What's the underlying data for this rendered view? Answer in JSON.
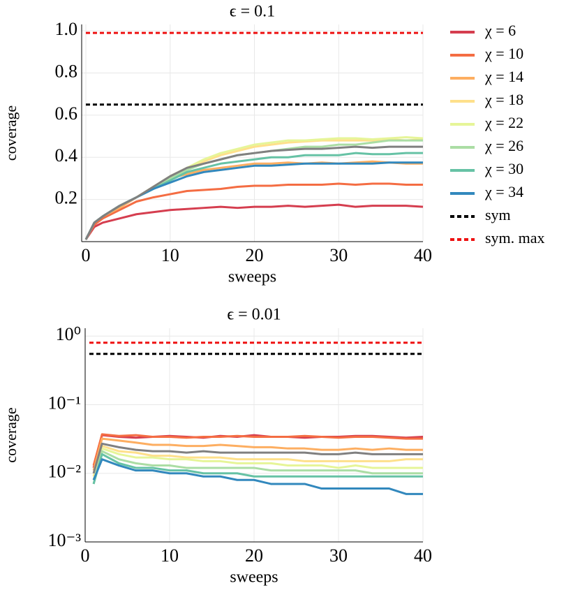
{
  "chart_data": [
    {
      "type": "line",
      "title": "ϵ = 0.1",
      "xlabel": "sweeps",
      "ylabel": "coverage",
      "xlim": [
        -0.5,
        40
      ],
      "ylim": [
        0,
        1.03
      ],
      "xticks": [
        0,
        10,
        20,
        30,
        40
      ],
      "yticks": [
        0.2,
        0.4,
        0.6,
        0.8,
        {
          "value": 1.0,
          "label": "1.0"
        }
      ],
      "grid": true,
      "log_y": false,
      "legend": "outside right",
      "x": [
        0,
        1,
        2,
        4,
        6,
        8,
        10,
        12,
        14,
        16,
        18,
        20,
        22,
        24,
        26,
        28,
        30,
        32,
        34,
        36,
        38,
        40
      ],
      "series": [
        {
          "name": "χ = 6",
          "color": "#d53e4f",
          "values": [
            0.01,
            0.07,
            0.09,
            0.11,
            0.13,
            0.14,
            0.15,
            0.155,
            0.16,
            0.165,
            0.16,
            0.165,
            0.165,
            0.17,
            0.165,
            0.17,
            0.175,
            0.165,
            0.17,
            0.17,
            0.17,
            0.165
          ]
        },
        {
          "name": "χ = 10",
          "color": "#f46d43",
          "values": [
            0.01,
            0.08,
            0.11,
            0.15,
            0.19,
            0.21,
            0.225,
            0.24,
            0.245,
            0.25,
            0.26,
            0.265,
            0.265,
            0.27,
            0.27,
            0.27,
            0.275,
            0.27,
            0.275,
            0.275,
            0.27,
            0.27
          ]
        },
        {
          "name": "χ = 14",
          "color": "#fdae61",
          "values": [
            0.01,
            0.09,
            0.12,
            0.16,
            0.21,
            0.26,
            0.3,
            0.32,
            0.34,
            0.35,
            0.36,
            0.37,
            0.37,
            0.375,
            0.37,
            0.375,
            0.37,
            0.375,
            0.38,
            0.375,
            0.37,
            0.37
          ]
        },
        {
          "name": "χ = 18",
          "color": "#fee08b",
          "values": [
            0.01,
            0.09,
            0.12,
            0.17,
            0.21,
            0.26,
            0.31,
            0.35,
            0.38,
            0.41,
            0.43,
            0.45,
            0.46,
            0.47,
            0.475,
            0.48,
            0.48,
            0.48,
            0.48,
            0.485,
            0.48,
            0.485
          ]
        },
        {
          "name": "χ = 22",
          "color": "#e6f598",
          "values": [
            0.01,
            0.09,
            0.12,
            0.17,
            0.21,
            0.26,
            0.31,
            0.35,
            0.39,
            0.42,
            0.44,
            0.46,
            0.47,
            0.48,
            0.48,
            0.485,
            0.49,
            0.49,
            0.485,
            0.49,
            0.495,
            0.49
          ]
        },
        {
          "name": "χ = 26",
          "color": "#abdda4",
          "values": [
            0.01,
            0.09,
            0.12,
            0.17,
            0.21,
            0.25,
            0.3,
            0.34,
            0.37,
            0.39,
            0.41,
            0.42,
            0.43,
            0.44,
            0.45,
            0.45,
            0.46,
            0.46,
            0.47,
            0.48,
            0.48,
            0.48
          ]
        },
        {
          "name": "χ = 30",
          "color": "#66c2a5",
          "values": [
            0.01,
            0.09,
            0.12,
            0.17,
            0.21,
            0.25,
            0.29,
            0.33,
            0.35,
            0.37,
            0.38,
            0.39,
            0.4,
            0.4,
            0.41,
            0.41,
            0.41,
            0.42,
            0.415,
            0.415,
            0.42,
            0.42
          ]
        },
        {
          "name": "χ = 34",
          "color": "#3288bd",
          "values": [
            0.01,
            0.09,
            0.12,
            0.17,
            0.21,
            0.25,
            0.28,
            0.31,
            0.33,
            0.34,
            0.35,
            0.36,
            0.36,
            0.365,
            0.37,
            0.37,
            0.37,
            0.37,
            0.37,
            0.375,
            0.375,
            0.375
          ]
        },
        {
          "color": "#808080",
          "values": [
            0.01,
            0.09,
            0.12,
            0.17,
            0.21,
            0.26,
            0.31,
            0.35,
            0.37,
            0.39,
            0.41,
            0.42,
            0.43,
            0.435,
            0.44,
            0.44,
            0.445,
            0.45,
            0.445,
            0.45,
            0.45,
            0.45
          ]
        }
      ],
      "hlines": [
        {
          "name": "sym",
          "color": "#000000",
          "value": 0.65
        },
        {
          "name": "sym. max",
          "color": "#ee1111",
          "value": 0.99
        }
      ]
    },
    {
      "type": "line",
      "title": "ϵ = 0.01",
      "xlabel": "sweeps",
      "ylabel": "coverage",
      "xlim": [
        0,
        40
      ],
      "ylim": [
        0.001,
        1.3
      ],
      "xticks": [
        0,
        10,
        20,
        30,
        40
      ],
      "yticks": [
        {
          "value": 0.001,
          "label": "10⁻³"
        },
        {
          "value": 0.01,
          "label": "10⁻²"
        },
        {
          "value": 0.1,
          "label": "10⁻¹"
        },
        {
          "value": 1,
          "label": "10⁰"
        }
      ],
      "grid": true,
      "log_y": true,
      "x": [
        1,
        2,
        4,
        6,
        8,
        10,
        12,
        14,
        16,
        18,
        20,
        22,
        24,
        26,
        28,
        30,
        32,
        34,
        36,
        38,
        40
      ],
      "series": [
        {
          "color": "#d53e4f",
          "values": [
            0.012,
            0.036,
            0.034,
            0.033,
            0.034,
            0.035,
            0.034,
            0.033,
            0.035,
            0.034,
            0.036,
            0.034,
            0.034,
            0.033,
            0.034,
            0.034,
            0.035,
            0.035,
            0.034,
            0.033,
            0.034
          ]
        },
        {
          "color": "#f46d43",
          "values": [
            0.013,
            0.037,
            0.035,
            0.036,
            0.034,
            0.034,
            0.033,
            0.034,
            0.034,
            0.035,
            0.034,
            0.034,
            0.034,
            0.035,
            0.034,
            0.033,
            0.034,
            0.034,
            0.033,
            0.032,
            0.032
          ]
        },
        {
          "color": "#fdae61",
          "values": [
            0.011,
            0.032,
            0.03,
            0.028,
            0.026,
            0.026,
            0.025,
            0.025,
            0.026,
            0.025,
            0.024,
            0.024,
            0.023,
            0.023,
            0.022,
            0.022,
            0.023,
            0.022,
            0.023,
            0.022,
            0.022
          ]
        },
        {
          "color": "#fee08b",
          "values": [
            0.009,
            0.025,
            0.021,
            0.02,
            0.018,
            0.018,
            0.017,
            0.017,
            0.017,
            0.016,
            0.016,
            0.016,
            0.016,
            0.015,
            0.015,
            0.015,
            0.015,
            0.015,
            0.015,
            0.016,
            0.016
          ]
        },
        {
          "color": "#e6f598",
          "values": [
            0.008,
            0.023,
            0.019,
            0.017,
            0.017,
            0.016,
            0.016,
            0.015,
            0.015,
            0.014,
            0.014,
            0.014,
            0.013,
            0.013,
            0.013,
            0.012,
            0.013,
            0.012,
            0.012,
            0.012,
            0.012
          ]
        },
        {
          "color": "#abdda4",
          "values": [
            0.007,
            0.021,
            0.016,
            0.014,
            0.013,
            0.013,
            0.012,
            0.012,
            0.012,
            0.012,
            0.012,
            0.011,
            0.011,
            0.011,
            0.011,
            0.011,
            0.011,
            0.01,
            0.01,
            0.01,
            0.01
          ]
        },
        {
          "color": "#66c2a5",
          "values": [
            0.007,
            0.019,
            0.014,
            0.012,
            0.012,
            0.011,
            0.011,
            0.01,
            0.01,
            0.01,
            0.009,
            0.009,
            0.009,
            0.009,
            0.009,
            0.009,
            0.009,
            0.009,
            0.009,
            0.009,
            0.009
          ]
        },
        {
          "color": "#3288bd",
          "values": [
            0.008,
            0.016,
            0.013,
            0.011,
            0.011,
            0.01,
            0.01,
            0.009,
            0.009,
            0.008,
            0.008,
            0.007,
            0.007,
            0.007,
            0.006,
            0.006,
            0.006,
            0.006,
            0.006,
            0.005,
            0.005
          ]
        },
        {
          "color": "#808080",
          "values": [
            0.01,
            0.027,
            0.024,
            0.022,
            0.021,
            0.021,
            0.02,
            0.021,
            0.02,
            0.02,
            0.02,
            0.02,
            0.02,
            0.02,
            0.019,
            0.019,
            0.02,
            0.019,
            0.019,
            0.019,
            0.019
          ]
        }
      ],
      "hlines": [
        {
          "color": "#000000",
          "value": 0.55
        },
        {
          "color": "#ee1111",
          "value": 0.8
        }
      ]
    }
  ]
}
